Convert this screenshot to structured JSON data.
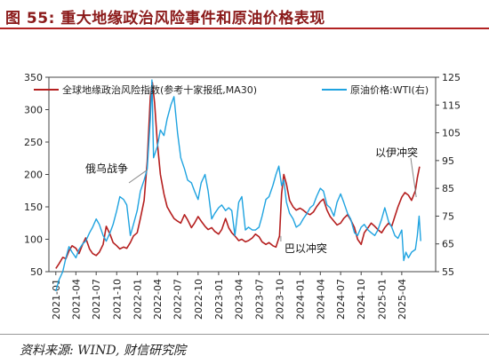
{
  "header": {
    "title": "图 55: 重大地缘政治风险事件和原油价格表现"
  },
  "footer": {
    "source": "资料来源: WIND, 财信研究院"
  },
  "chart_data": {
    "type": "line",
    "x_ticks": [
      "2021-01",
      "2021-04",
      "2021-07",
      "2021-10",
      "2022-01",
      "2022-04",
      "2022-07",
      "2022-10",
      "2023-01",
      "2023-04",
      "2023-07",
      "2023-10",
      "2024-01",
      "2024-04",
      "2024-07",
      "2024-10",
      "2025-01",
      "2025-04"
    ],
    "x_range": [
      "2020-12-01",
      "2025-08-31"
    ],
    "y_left": {
      "ticks": [
        50,
        100,
        150,
        200,
        250,
        300,
        350
      ],
      "range": [
        50,
        350
      ]
    },
    "y_right": {
      "ticks": [
        55,
        65,
        75,
        85,
        95,
        105,
        115,
        125
      ],
      "range": [
        55,
        125
      ]
    },
    "series": [
      {
        "name": "全球地缘政治风险指数(参考十家报纸,MA30)",
        "color": "#b51f1f",
        "axis": "left",
        "points": [
          [
            "2021-01-01",
            55
          ],
          [
            "2021-01-15",
            62
          ],
          [
            "2021-02-01",
            72
          ],
          [
            "2021-02-15",
            70
          ],
          [
            "2021-03-01",
            82
          ],
          [
            "2021-03-15",
            90
          ],
          [
            "2021-04-01",
            86
          ],
          [
            "2021-04-15",
            78
          ],
          [
            "2021-05-01",
            92
          ],
          [
            "2021-05-15",
            102
          ],
          [
            "2021-06-01",
            85
          ],
          [
            "2021-06-15",
            78
          ],
          [
            "2021-07-01",
            75
          ],
          [
            "2021-07-15",
            80
          ],
          [
            "2021-08-01",
            92
          ],
          [
            "2021-08-15",
            120
          ],
          [
            "2021-09-01",
            108
          ],
          [
            "2021-09-15",
            95
          ],
          [
            "2021-10-01",
            90
          ],
          [
            "2021-10-15",
            85
          ],
          [
            "2021-11-01",
            88
          ],
          [
            "2021-11-15",
            86
          ],
          [
            "2021-12-01",
            95
          ],
          [
            "2021-12-15",
            105
          ],
          [
            "2022-01-01",
            110
          ],
          [
            "2022-01-15",
            132
          ],
          [
            "2022-02-01",
            160
          ],
          [
            "2022-02-15",
            220
          ],
          [
            "2022-03-01",
            320
          ],
          [
            "2022-03-10",
            342
          ],
          [
            "2022-03-20",
            310
          ],
          [
            "2022-04-01",
            250
          ],
          [
            "2022-04-15",
            200
          ],
          [
            "2022-05-01",
            170
          ],
          [
            "2022-05-15",
            150
          ],
          [
            "2022-06-01",
            140
          ],
          [
            "2022-06-15",
            132
          ],
          [
            "2022-07-01",
            128
          ],
          [
            "2022-07-15",
            125
          ],
          [
            "2022-08-01",
            138
          ],
          [
            "2022-08-15",
            130
          ],
          [
            "2022-09-01",
            118
          ],
          [
            "2022-09-15",
            125
          ],
          [
            "2022-10-01",
            135
          ],
          [
            "2022-10-15",
            128
          ],
          [
            "2022-11-01",
            120
          ],
          [
            "2022-11-15",
            115
          ],
          [
            "2022-12-01",
            118
          ],
          [
            "2022-12-15",
            112
          ],
          [
            "2023-01-01",
            108
          ],
          [
            "2023-01-15",
            115
          ],
          [
            "2023-02-01",
            132
          ],
          [
            "2023-02-15",
            118
          ],
          [
            "2023-03-01",
            110
          ],
          [
            "2023-03-15",
            105
          ],
          [
            "2023-04-01",
            98
          ],
          [
            "2023-04-15",
            100
          ],
          [
            "2023-05-01",
            96
          ],
          [
            "2023-05-15",
            98
          ],
          [
            "2023-06-01",
            102
          ],
          [
            "2023-06-15",
            108
          ],
          [
            "2023-07-01",
            104
          ],
          [
            "2023-07-15",
            96
          ],
          [
            "2023-08-01",
            92
          ],
          [
            "2023-08-15",
            95
          ],
          [
            "2023-09-01",
            90
          ],
          [
            "2023-09-15",
            88
          ],
          [
            "2023-10-01",
            105
          ],
          [
            "2023-10-10",
            170
          ],
          [
            "2023-10-20",
            200
          ],
          [
            "2023-11-01",
            185
          ],
          [
            "2023-11-15",
            160
          ],
          [
            "2023-12-01",
            150
          ],
          [
            "2023-12-15",
            145
          ],
          [
            "2024-01-01",
            148
          ],
          [
            "2024-01-15",
            145
          ],
          [
            "2024-02-01",
            140
          ],
          [
            "2024-02-15",
            138
          ],
          [
            "2024-03-01",
            142
          ],
          [
            "2024-03-15",
            150
          ],
          [
            "2024-04-01",
            158
          ],
          [
            "2024-04-15",
            162
          ],
          [
            "2024-05-01",
            145
          ],
          [
            "2024-05-15",
            135
          ],
          [
            "2024-06-01",
            128
          ],
          [
            "2024-06-15",
            122
          ],
          [
            "2024-07-01",
            125
          ],
          [
            "2024-07-15",
            132
          ],
          [
            "2024-08-01",
            138
          ],
          [
            "2024-08-15",
            130
          ],
          [
            "2024-09-01",
            118
          ],
          [
            "2024-09-15",
            100
          ],
          [
            "2024-10-01",
            92
          ],
          [
            "2024-10-15",
            110
          ],
          [
            "2024-11-01",
            118
          ],
          [
            "2024-11-15",
            125
          ],
          [
            "2024-12-01",
            120
          ],
          [
            "2024-12-15",
            115
          ],
          [
            "2025-01-01",
            110
          ],
          [
            "2025-01-15",
            118
          ],
          [
            "2025-02-01",
            125
          ],
          [
            "2025-02-15",
            120
          ],
          [
            "2025-03-01",
            135
          ],
          [
            "2025-03-15",
            150
          ],
          [
            "2025-04-01",
            165
          ],
          [
            "2025-04-15",
            172
          ],
          [
            "2025-05-01",
            168
          ],
          [
            "2025-05-15",
            160
          ],
          [
            "2025-06-01",
            175
          ],
          [
            "2025-06-10",
            195
          ],
          [
            "2025-06-20",
            212
          ]
        ]
      },
      {
        "name": "原油价格:WTI(右)",
        "color": "#1fa3e0",
        "axis": "right",
        "points": [
          [
            "2021-01-01",
            48
          ],
          [
            "2021-01-15",
            52
          ],
          [
            "2021-02-01",
            55
          ],
          [
            "2021-02-15",
            60
          ],
          [
            "2021-03-01",
            64
          ],
          [
            "2021-03-15",
            62
          ],
          [
            "2021-04-01",
            60
          ],
          [
            "2021-04-15",
            63
          ],
          [
            "2021-05-01",
            65
          ],
          [
            "2021-05-15",
            66
          ],
          [
            "2021-06-01",
            69
          ],
          [
            "2021-06-15",
            71
          ],
          [
            "2021-07-01",
            74
          ],
          [
            "2021-07-15",
            72
          ],
          [
            "2021-08-01",
            68
          ],
          [
            "2021-08-15",
            66
          ],
          [
            "2021-09-01",
            69
          ],
          [
            "2021-09-15",
            72
          ],
          [
            "2021-10-01",
            77
          ],
          [
            "2021-10-15",
            82
          ],
          [
            "2021-11-01",
            81
          ],
          [
            "2021-11-15",
            79
          ],
          [
            "2021-12-01",
            68
          ],
          [
            "2021-12-15",
            72
          ],
          [
            "2022-01-01",
            77
          ],
          [
            "2022-01-15",
            84
          ],
          [
            "2022-02-01",
            88
          ],
          [
            "2022-02-15",
            92
          ],
          [
            "2022-03-01",
            110
          ],
          [
            "2022-03-08",
            124
          ],
          [
            "2022-03-15",
            96
          ],
          [
            "2022-04-01",
            100
          ],
          [
            "2022-04-15",
            106
          ],
          [
            "2022-05-01",
            104
          ],
          [
            "2022-05-15",
            110
          ],
          [
            "2022-06-01",
            115
          ],
          [
            "2022-06-15",
            118
          ],
          [
            "2022-07-01",
            105
          ],
          [
            "2022-07-15",
            96
          ],
          [
            "2022-08-01",
            92
          ],
          [
            "2022-08-15",
            88
          ],
          [
            "2022-09-01",
            87
          ],
          [
            "2022-09-15",
            84
          ],
          [
            "2022-10-01",
            81
          ],
          [
            "2022-10-15",
            87
          ],
          [
            "2022-11-01",
            90
          ],
          [
            "2022-11-15",
            84
          ],
          [
            "2022-12-01",
            74
          ],
          [
            "2022-12-15",
            76
          ],
          [
            "2023-01-01",
            78
          ],
          [
            "2023-01-15",
            79
          ],
          [
            "2023-02-01",
            77
          ],
          [
            "2023-02-15",
            78
          ],
          [
            "2023-03-01",
            77
          ],
          [
            "2023-03-15",
            68
          ],
          [
            "2023-04-01",
            80
          ],
          [
            "2023-04-15",
            82
          ],
          [
            "2023-05-01",
            70
          ],
          [
            "2023-05-15",
            71
          ],
          [
            "2023-06-01",
            70
          ],
          [
            "2023-06-15",
            70
          ],
          [
            "2023-07-01",
            71
          ],
          [
            "2023-07-15",
            75
          ],
          [
            "2023-08-01",
            81
          ],
          [
            "2023-08-15",
            82
          ],
          [
            "2023-09-01",
            86
          ],
          [
            "2023-09-15",
            90
          ],
          [
            "2023-09-28",
            93
          ],
          [
            "2023-10-10",
            86
          ],
          [
            "2023-10-20",
            88
          ],
          [
            "2023-11-01",
            80
          ],
          [
            "2023-11-15",
            76
          ],
          [
            "2023-12-01",
            74
          ],
          [
            "2023-12-15",
            71
          ],
          [
            "2024-01-01",
            72
          ],
          [
            "2024-01-15",
            74
          ],
          [
            "2024-02-01",
            76
          ],
          [
            "2024-02-15",
            78
          ],
          [
            "2024-03-01",
            79
          ],
          [
            "2024-03-15",
            82
          ],
          [
            "2024-04-01",
            85
          ],
          [
            "2024-04-15",
            84
          ],
          [
            "2024-05-01",
            79
          ],
          [
            "2024-05-15",
            78
          ],
          [
            "2024-06-01",
            75
          ],
          [
            "2024-06-15",
            80
          ],
          [
            "2024-07-01",
            83
          ],
          [
            "2024-07-15",
            80
          ],
          [
            "2024-08-01",
            76
          ],
          [
            "2024-08-15",
            74
          ],
          [
            "2024-09-01",
            69
          ],
          [
            "2024-09-15",
            68
          ],
          [
            "2024-10-01",
            71
          ],
          [
            "2024-10-15",
            72
          ],
          [
            "2024-11-01",
            70
          ],
          [
            "2024-11-15",
            69
          ],
          [
            "2024-12-01",
            68
          ],
          [
            "2024-12-15",
            70
          ],
          [
            "2025-01-01",
            74
          ],
          [
            "2025-01-15",
            78
          ],
          [
            "2025-02-01",
            73
          ],
          [
            "2025-02-15",
            71
          ],
          [
            "2025-03-01",
            68
          ],
          [
            "2025-03-15",
            67
          ],
          [
            "2025-04-01",
            70
          ],
          [
            "2025-04-10",
            59
          ],
          [
            "2025-04-20",
            62
          ],
          [
            "2025-05-01",
            60
          ],
          [
            "2025-05-15",
            62
          ],
          [
            "2025-06-01",
            63
          ],
          [
            "2025-06-10",
            68
          ],
          [
            "2025-06-18",
            75
          ],
          [
            "2025-06-25",
            66
          ]
        ]
      }
    ],
    "annotations": [
      {
        "text": "俄乌战争",
        "at": [
          "2022-02-24",
          210
        ]
      },
      {
        "text": "巴以冲突",
        "at": [
          "2023-10-07",
          105
        ]
      },
      {
        "text": "以伊冲突",
        "at": [
          "2025-06-13",
          165
        ]
      }
    ],
    "legend_placement": "top",
    "grid": false
  }
}
